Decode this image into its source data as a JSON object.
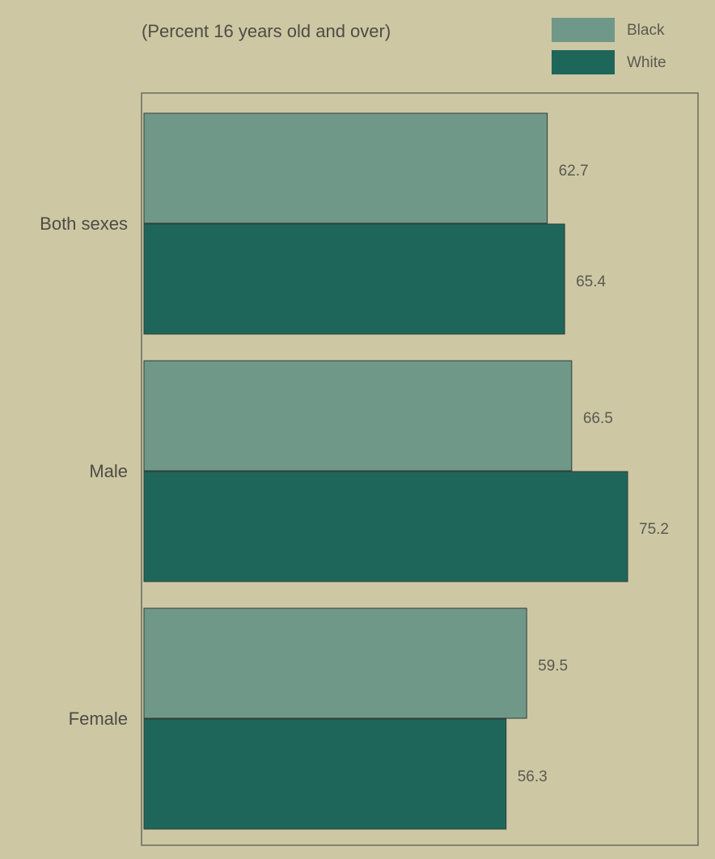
{
  "chart_data": {
    "type": "bar",
    "orientation": "horizontal",
    "subtitle": "(Percent 16 years old and over)",
    "categories": [
      "Both sexes",
      "Male",
      "Female"
    ],
    "series": [
      {
        "name": "Black",
        "color": "#6f9889",
        "values": [
          62.7,
          66.5,
          59.5
        ]
      },
      {
        "name": "White",
        "color": "#1f665a",
        "values": [
          65.4,
          75.2,
          56.3
        ]
      }
    ],
    "legend": "top-right"
  }
}
